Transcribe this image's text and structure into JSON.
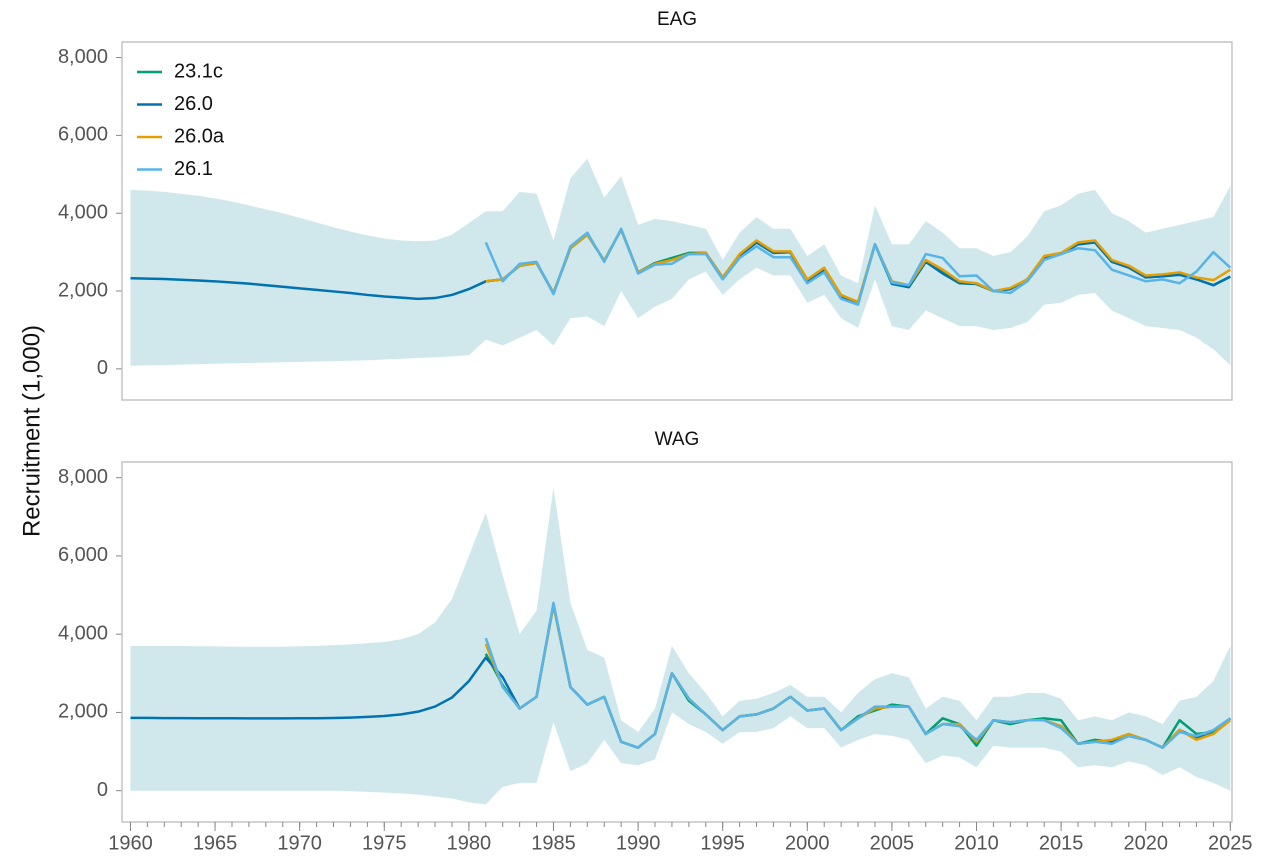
{
  "chart_data": [
    {
      "type": "line",
      "title": "EAG",
      "ylabel": "Recruitment (1,000)",
      "legend": "upper left",
      "xlim": [
        1959.5,
        2025.1
      ],
      "ylim": [
        -800,
        8400
      ],
      "yticks": [
        0,
        {
          "value": 2000,
          "label": "2,000"
        },
        {
          "value": 4000,
          "label": "4,000"
        },
        {
          "value": 6000,
          "label": "6,000"
        },
        {
          "value": 8000,
          "label": "8,000"
        }
      ],
      "band_color": "#a9d6dd",
      "x": [
        1960,
        1961,
        1962,
        1963,
        1964,
        1965,
        1966,
        1967,
        1968,
        1969,
        1970,
        1971,
        1972,
        1973,
        1974,
        1975,
        1976,
        1977,
        1978,
        1979,
        1980,
        1981,
        1982,
        1983,
        1984,
        1985,
        1986,
        1987,
        1988,
        1989,
        1990,
        1991,
        1992,
        1993,
        1994,
        1995,
        1996,
        1997,
        1998,
        1999,
        2000,
        2001,
        2002,
        2003,
        2004,
        2005,
        2006,
        2007,
        2008,
        2009,
        2010,
        2011,
        2012,
        2013,
        2014,
        2015,
        2016,
        2017,
        2018,
        2019,
        2020,
        2021,
        2022,
        2023,
        2024,
        2025
      ],
      "series": [
        {
          "name": "23.1c",
          "color": "#009E73",
          "values": [
            null,
            null,
            null,
            null,
            null,
            null,
            null,
            null,
            null,
            null,
            null,
            null,
            null,
            null,
            null,
            null,
            null,
            null,
            null,
            null,
            null,
            2250,
            2300,
            2650,
            2720,
            1950,
            3100,
            3450,
            2780,
            3580,
            2480,
            2720,
            2850,
            2980,
            2980,
            2350,
            2920,
            3250,
            2980,
            3000,
            2250,
            2580,
            1850,
            1700,
            3200,
            2180,
            2100,
            2750,
            2500,
            2200,
            2200,
            2000,
            2050,
            2300,
            2850,
            2950,
            3200,
            3250,
            2750,
            2620,
            2350,
            2380,
            2420,
            2300,
            2150,
            2370
          ]
        },
        {
          "name": "26.0",
          "color": "#0072B2",
          "values": [
            2330,
            2320,
            2310,
            2290,
            2270,
            2250,
            2220,
            2190,
            2150,
            2110,
            2070,
            2030,
            1990,
            1950,
            1900,
            1860,
            1830,
            1800,
            1820,
            1900,
            2050,
            2250,
            2300,
            2650,
            2720,
            1950,
            3100,
            3450,
            2780,
            3580,
            2480,
            2700,
            2800,
            2950,
            2980,
            2350,
            2900,
            3250,
            2980,
            3000,
            2250,
            2550,
            1850,
            1700,
            3200,
            2200,
            2100,
            2750,
            2450,
            2200,
            2180,
            2000,
            2050,
            2300,
            2850,
            2950,
            3200,
            3250,
            2750,
            2600,
            2350,
            2380,
            2420,
            2300,
            2150,
            2370
          ],
          "lower": [
            80,
            90,
            100,
            110,
            120,
            130,
            140,
            150,
            160,
            170,
            180,
            190,
            200,
            210,
            220,
            240,
            260,
            280,
            300,
            320,
            350,
            750,
            600,
            800,
            1000,
            600,
            1300,
            1350,
            1100,
            2000,
            1300,
            1600,
            1800,
            2300,
            2500,
            1900,
            2300,
            2600,
            2400,
            2400,
            1700,
            1900,
            1300,
            1050,
            2300,
            1100,
            1000,
            1500,
            1300,
            1100,
            1100,
            1000,
            1050,
            1200,
            1650,
            1700,
            1900,
            1950,
            1500,
            1300,
            1100,
            1050,
            1000,
            800,
            500,
            100
          ],
          "upper": [
            4600,
            4580,
            4550,
            4500,
            4450,
            4380,
            4300,
            4200,
            4100,
            4000,
            3880,
            3760,
            3640,
            3530,
            3430,
            3350,
            3300,
            3280,
            3300,
            3450,
            3750,
            4050,
            4050,
            4550,
            4500,
            3300,
            4900,
            5400,
            4400,
            4950,
            3700,
            3850,
            3800,
            3700,
            3600,
            2800,
            3500,
            3900,
            3600,
            3600,
            2900,
            3200,
            2400,
            2200,
            4200,
            3200,
            3200,
            3800,
            3500,
            3100,
            3100,
            2900,
            3000,
            3400,
            4050,
            4200,
            4500,
            4600,
            4000,
            3800,
            3500,
            3600,
            3700,
            3800,
            3900,
            4700
          ]
        },
        {
          "name": "26.0a",
          "color": "#E69F00",
          "values": [
            null,
            null,
            null,
            null,
            null,
            null,
            null,
            null,
            null,
            null,
            null,
            null,
            null,
            null,
            null,
            null,
            null,
            null,
            null,
            null,
            null,
            2250,
            2300,
            2650,
            2720,
            1950,
            3100,
            3450,
            2780,
            3580,
            2480,
            2700,
            2800,
            2950,
            2980,
            2350,
            2950,
            3300,
            3020,
            3020,
            2300,
            2600,
            1900,
            1720,
            3200,
            2250,
            2150,
            2800,
            2550,
            2250,
            2200,
            2000,
            2080,
            2300,
            2900,
            2980,
            3250,
            3300,
            2800,
            2650,
            2400,
            2430,
            2480,
            2350,
            2280,
            2550
          ]
        },
        {
          "name": "26.1",
          "color": "#56B4E9",
          "values": [
            null,
            null,
            null,
            null,
            null,
            null,
            null,
            null,
            null,
            null,
            null,
            null,
            null,
            null,
            null,
            null,
            null,
            null,
            null,
            null,
            null,
            3250,
            2250,
            2700,
            2750,
            1920,
            3150,
            3500,
            2750,
            3600,
            2450,
            2680,
            2700,
            2950,
            2950,
            2300,
            2850,
            3150,
            2870,
            2870,
            2200,
            2480,
            1800,
            1650,
            3200,
            2220,
            2150,
            2950,
            2850,
            2380,
            2400,
            2000,
            1950,
            2250,
            2800,
            2950,
            3100,
            3050,
            2550,
            2400,
            2250,
            2300,
            2200,
            2500,
            3000,
            2600
          ]
        }
      ]
    },
    {
      "type": "line",
      "title": "WAG",
      "xlim": [
        1959.5,
        2025.1
      ],
      "ylim": [
        -800,
        8400
      ],
      "yticks": [
        0,
        {
          "value": 2000,
          "label": "2,000"
        },
        {
          "value": 4000,
          "label": "4,000"
        },
        {
          "value": 6000,
          "label": "6,000"
        },
        {
          "value": 8000,
          "label": "8,000"
        }
      ],
      "xticks": [
        1960,
        1965,
        1970,
        1975,
        1980,
        1985,
        1990,
        1995,
        2000,
        2005,
        2010,
        2015,
        2020,
        2025
      ],
      "band_color": "#a9d6dd",
      "x": [
        1960,
        1961,
        1962,
        1963,
        1964,
        1965,
        1966,
        1967,
        1968,
        1969,
        1970,
        1971,
        1972,
        1973,
        1974,
        1975,
        1976,
        1977,
        1978,
        1979,
        1980,
        1981,
        1982,
        1983,
        1984,
        1985,
        1986,
        1987,
        1988,
        1989,
        1990,
        1991,
        1992,
        1993,
        1994,
        1995,
        1996,
        1997,
        1998,
        1999,
        2000,
        2001,
        2002,
        2003,
        2004,
        2005,
        2006,
        2007,
        2008,
        2009,
        2010,
        2011,
        2012,
        2013,
        2014,
        2015,
        2016,
        2017,
        2018,
        2019,
        2020,
        2021,
        2022,
        2023,
        2024,
        2025
      ],
      "series": [
        {
          "name": "23.1c",
          "color": "#009E73",
          "values": [
            null,
            null,
            null,
            null,
            null,
            null,
            null,
            null,
            null,
            null,
            null,
            null,
            null,
            null,
            null,
            null,
            null,
            null,
            null,
            null,
            null,
            3500,
            2700,
            2100,
            2400,
            4750,
            2650,
            2200,
            2400,
            1250,
            1100,
            1450,
            3000,
            2300,
            1950,
            1550,
            1900,
            1950,
            2100,
            2400,
            2050,
            2100,
            1550,
            1900,
            2050,
            2200,
            2150,
            1450,
            1850,
            1700,
            1150,
            1800,
            1700,
            1800,
            1850,
            1800,
            1200,
            1300,
            1250,
            1400,
            1300,
            1100,
            1800,
            1450,
            1500,
            1850
          ]
        },
        {
          "name": "26.0",
          "color": "#0072B2",
          "values": [
            1860,
            1860,
            1855,
            1855,
            1850,
            1850,
            1850,
            1848,
            1848,
            1848,
            1850,
            1852,
            1858,
            1868,
            1885,
            1910,
            1950,
            2020,
            2150,
            2380,
            2800,
            3400,
            2900,
            2100,
            2400,
            4750,
            2650,
            2200,
            2400,
            1250,
            1100,
            1450,
            3000,
            2350,
            1950,
            1550,
            1900,
            1950,
            2100,
            2400,
            2050,
            2100,
            1550,
            1850,
            2100,
            2150,
            2150,
            1450,
            1700,
            1700,
            1250,
            1800,
            1750,
            1800,
            1800,
            1650,
            1200,
            1250,
            1250,
            1400,
            1300,
            1100,
            1550,
            1350,
            1450,
            1850
          ],
          "lower": [
            0,
            0,
            0,
            0,
            0,
            0,
            0,
            0,
            0,
            0,
            0,
            0,
            0,
            -10,
            -30,
            -50,
            -70,
            -100,
            -150,
            -200,
            -300,
            -350,
            100,
            200,
            200,
            1750,
            500,
            700,
            1300,
            700,
            650,
            800,
            2000,
            1700,
            1500,
            1200,
            1500,
            1500,
            1600,
            1900,
            1600,
            1600,
            1100,
            1300,
            1450,
            1400,
            1300,
            700,
            900,
            850,
            600,
            1150,
            1100,
            1100,
            1100,
            1000,
            600,
            650,
            600,
            750,
            650,
            400,
            600,
            350,
            200,
            0
          ],
          "upper": [
            3700,
            3700,
            3700,
            3700,
            3690,
            3690,
            3680,
            3680,
            3680,
            3680,
            3690,
            3700,
            3720,
            3740,
            3770,
            3800,
            3870,
            4000,
            4300,
            4900,
            6000,
            7100,
            5500,
            4000,
            4600,
            7750,
            4800,
            3600,
            3400,
            1800,
            1500,
            2100,
            3700,
            3000,
            2500,
            1900,
            2300,
            2350,
            2500,
            2700,
            2400,
            2400,
            2000,
            2500,
            2850,
            3000,
            2900,
            2100,
            2400,
            2300,
            1800,
            2400,
            2400,
            2500,
            2500,
            2350,
            1800,
            1900,
            1800,
            2000,
            1900,
            1700,
            2300,
            2400,
            2800,
            3700
          ]
        },
        {
          "name": "26.0a",
          "color": "#E69F00",
          "values": [
            null,
            null,
            null,
            null,
            null,
            null,
            null,
            null,
            null,
            null,
            null,
            null,
            null,
            null,
            null,
            null,
            null,
            null,
            null,
            null,
            null,
            3750,
            2650,
            2100,
            2400,
            4750,
            2650,
            2200,
            2400,
            1250,
            1100,
            1450,
            3000,
            2350,
            1950,
            1550,
            1900,
            1950,
            2100,
            2400,
            2050,
            2100,
            1550,
            1850,
            2100,
            2150,
            2150,
            1450,
            1700,
            1700,
            1250,
            1800,
            1750,
            1800,
            1800,
            1650,
            1200,
            1250,
            1300,
            1450,
            1300,
            1100,
            1550,
            1300,
            1450,
            1800
          ]
        },
        {
          "name": "26.1",
          "color": "#56B4E9",
          "values": [
            null,
            null,
            null,
            null,
            null,
            null,
            null,
            null,
            null,
            null,
            null,
            null,
            null,
            null,
            null,
            null,
            null,
            null,
            null,
            null,
            null,
            3900,
            2650,
            2100,
            2400,
            4800,
            2650,
            2200,
            2400,
            1250,
            1100,
            1450,
            3000,
            2350,
            1950,
            1550,
            1900,
            1950,
            2100,
            2400,
            2050,
            2100,
            1550,
            1850,
            2150,
            2150,
            2150,
            1450,
            1700,
            1650,
            1300,
            1800,
            1750,
            1800,
            1800,
            1600,
            1200,
            1250,
            1200,
            1400,
            1300,
            1100,
            1500,
            1400,
            1550,
            1850
          ]
        }
      ]
    }
  ]
}
